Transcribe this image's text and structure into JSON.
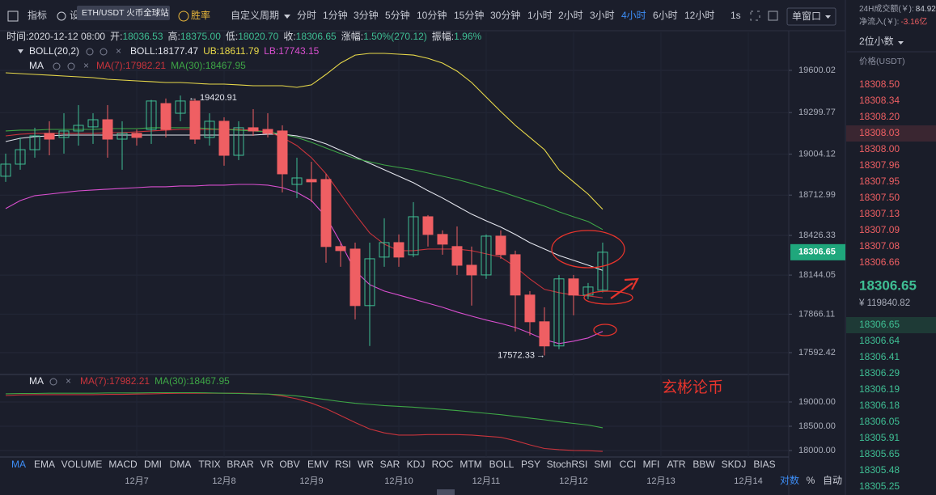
{
  "toolbar": {
    "indicators": "指标",
    "settings": "设置",
    "tooltip": "ETH/USDT 火币全球站",
    "winrate": "胜率",
    "custom_period": "自定义周期",
    "intervals": [
      "分时",
      "1分钟",
      "3分钟",
      "5分钟",
      "10分钟",
      "15分钟",
      "30分钟",
      "1小时",
      "2小时",
      "3小时",
      "4小时",
      "6小时",
      "12小时"
    ],
    "active_interval": 10,
    "seconds": "1s",
    "window": "单窗口"
  },
  "market": {
    "turnover_label": "24H成交额(￥):",
    "turnover": "84.92",
    "netflow_label": "净流入(￥):",
    "netflow": "-3.16亿",
    "decimals": "2位小数",
    "price_header": "价格(USDT)"
  },
  "info": [
    {
      "label": "时间:",
      "value": "2020-12-12 08:00"
    },
    {
      "label": "开:",
      "value": "18036.53"
    },
    {
      "label": "高:",
      "value": "18375.00"
    },
    {
      "label": "低:",
      "value": "18020.70"
    },
    {
      "label": "收:",
      "value": "18306.65"
    },
    {
      "label": "涨幅:",
      "value": "1.50%(270.12)"
    },
    {
      "label": "振幅:",
      "value": "1.96%"
    }
  ],
  "chart_data": {
    "type": "candlestick",
    "boll_title": "BOLL(20,2)",
    "ma_title": "MA",
    "up_color": "#3fbf94",
    "down_color": "#ef5f63",
    "xlim": [
      -0.39,
      53.78
    ],
    "xticks": [
      {
        "value": 9,
        "label": "12月7"
      },
      {
        "value": 15,
        "label": "12月8"
      },
      {
        "value": 21,
        "label": "12月9"
      },
      {
        "value": 27,
        "label": "12月10"
      },
      {
        "value": 33,
        "label": "12月11"
      },
      {
        "value": 39,
        "label": "12月12"
      },
      {
        "value": 45,
        "label": "12月13"
      },
      {
        "value": 51,
        "label": "12月14"
      }
    ],
    "ylim": [
      17442.8,
      19870.4
    ],
    "yticks": [
      19600.02,
      19299.77,
      19004.12,
      18712.99,
      18426.33,
      18144.05,
      17866.11,
      17592.42
    ],
    "lower_ylim": [
      17866.7,
      19566.7
    ],
    "lower_yticks": [
      {
        "value": 19000,
        "label": "19000.00"
      },
      {
        "value": 18500,
        "label": "18500.00"
      },
      {
        "value": 18000,
        "label": "18000.00"
      }
    ],
    "last_price": 18306.65,
    "annotations": {
      "high": "19420.91",
      "high_index": 12,
      "low": "17572.33",
      "low_index": 37
    },
    "open": [
      18847,
      18933,
      19036,
      19152,
      19123,
      19169,
      19198,
      19249,
      19111,
      19152,
      19180,
      19364,
      19295,
      19382,
      19123,
      19238,
      18996,
      19192,
      19180,
      19169,
      18789,
      18824,
      18824,
      18347,
      18329,
      17927,
      18272,
      18375,
      18289,
      18559,
      18433,
      18347,
      18214,
      18145,
      18421,
      18289,
      18002,
      17812,
      17640,
      18117,
      18002,
      18036.53
    ],
    "high": [
      19008,
      19123,
      19192,
      19238,
      19295,
      19353,
      19295,
      19353,
      19238,
      19180,
      19390,
      19400,
      19420.91,
      19400,
      19295,
      19266,
      19238,
      19324,
      19295,
      19209,
      18979,
      18950,
      18864,
      18375,
      18375,
      18375,
      18548,
      18433,
      18663,
      18571,
      18462,
      18490,
      18347,
      18433,
      18462,
      18318,
      18030,
      17915,
      18145,
      18145,
      18088,
      18375
    ],
    "low": [
      18807,
      18893,
      18979,
      18996,
      19008,
      19065,
      19077,
      18979,
      18893,
      19065,
      19077,
      19123,
      19238,
      19077,
      19065,
      18922,
      18962,
      19134,
      19123,
      18732,
      18692,
      18663,
      18232,
      18203,
      17829,
      17640,
      18203,
      18203,
      18272,
      18347,
      18289,
      18145,
      17927,
      18117,
      18260,
      17743,
      17714,
      17572.33,
      17617,
      17858,
      17973,
      18020.7
    ],
    "close": [
      18933,
      19036,
      19134,
      19111,
      19169,
      19209,
      19249,
      19111,
      19152,
      19123,
      19382,
      19180,
      19382,
      19111,
      19238,
      18996,
      19192,
      19169,
      19152,
      18864,
      18835,
      18807,
      18347,
      18318,
      17927,
      18260,
      18375,
      18272,
      18559,
      18433,
      18364,
      18214,
      18145,
      18421,
      18289,
      18002,
      17812,
      17640,
      18117,
      18002,
      18059,
      18306.65
    ],
    "series": [
      {
        "legend": "BOLL:18177.47",
        "color": "#e4e6ee",
        "values": [
          19094,
          19117,
          19129,
          19134,
          19140,
          19140,
          19140,
          19140,
          19140,
          19140,
          19140,
          19140,
          19140,
          19140,
          19140,
          19140,
          19140,
          19140,
          19146,
          19146,
          19134,
          19111,
          19077,
          19031,
          18985,
          18939,
          18893,
          18847,
          18801,
          18744,
          18692,
          18634,
          18577,
          18530,
          18485,
          18433,
          18375,
          18329,
          18283,
          18249,
          18214,
          18177.47
        ]
      },
      {
        "legend": "UB:18611.79",
        "color": "#e8d94a",
        "values": [
          19583,
          19577,
          19571,
          19566,
          19560,
          19554,
          19548,
          19537,
          19531,
          19525,
          19520,
          19514,
          19514,
          19508,
          19502,
          19502,
          19497,
          19491,
          19491,
          19491,
          19479,
          19497,
          19571,
          19652,
          19709,
          19721,
          19721,
          19715,
          19709,
          19686,
          19652,
          19594,
          19514,
          19410,
          19307,
          19209,
          19123,
          19036,
          18893,
          18807,
          18720,
          18611.79
        ]
      },
      {
        "legend": "LB:17743.15",
        "color": "#d94fcf",
        "values": [
          18617,
          18674,
          18709,
          18720,
          18732,
          18743,
          18749,
          18755,
          18761,
          18766,
          18772,
          18772,
          18778,
          18778,
          18784,
          18784,
          18789,
          18789,
          18784,
          18766,
          18732,
          18674,
          18559,
          18375,
          18174,
          18076,
          18030,
          18002,
          17973,
          17944,
          17915,
          17881,
          17852,
          17824,
          17800,
          17772,
          17731,
          17685,
          17657,
          17674,
          17697,
          17743.15
        ]
      },
      {
        "legend": "MA(7):17982.21",
        "color": "#c9343c",
        "values": [
          19134,
          19146,
          19152,
          19152,
          19152,
          19152,
          19152,
          19157,
          19157,
          19163,
          19169,
          19175,
          19180,
          19180,
          19180,
          19180,
          19180,
          19175,
          19163,
          19123,
          19065,
          18979,
          18864,
          18720,
          18577,
          18444,
          18364,
          18318,
          18318,
          18329,
          18329,
          18329,
          18318,
          18295,
          18272,
          18203,
          18117,
          18042,
          18019,
          18002,
          17996,
          17982.21
        ]
      },
      {
        "legend": "MA(30):18467.95",
        "color": "#3ea646",
        "values": [
          19169,
          19175,
          19175,
          19180,
          19180,
          19180,
          19180,
          19186,
          19186,
          19186,
          19192,
          19192,
          19192,
          19192,
          19186,
          19180,
          19175,
          19169,
          19163,
          19146,
          19123,
          19088,
          19048,
          19008,
          18973,
          18950,
          18927,
          18910,
          18893,
          18870,
          18847,
          18824,
          18795,
          18766,
          18738,
          18703,
          18669,
          18634,
          18594,
          18559,
          18525,
          18467.95
        ]
      }
    ]
  },
  "watermark": "玄彬论币",
  "order_book": {
    "asks": [
      "18308.50",
      "18308.34",
      "18308.20",
      "18308.03",
      "18308.00",
      "18307.96",
      "18307.95",
      "18307.50",
      "18307.13",
      "18307.09",
      "18307.08",
      "18306.66"
    ],
    "last": "18306.65",
    "last_cny": "¥ 119840.82",
    "bids": [
      "18306.65",
      "18306.64",
      "18306.41",
      "18306.29",
      "18306.19",
      "18306.18",
      "18306.05",
      "18305.91",
      "18305.65",
      "18305.48",
      "18305.25"
    ]
  },
  "indicator_tabs": [
    "MA",
    "EMA",
    "VOLUME",
    "MACD",
    "DMI",
    "DMA",
    "TRIX",
    "BRAR",
    "VR",
    "OBV",
    "EMV",
    "RSI",
    "WR",
    "SAR",
    "KDJ",
    "ROC",
    "MTM",
    "BOLL",
    "PSY",
    "StochRSI",
    "SMI",
    "CCI",
    "MFI",
    "ATR",
    "BBW",
    "SKDJ",
    "BIAS"
  ],
  "active_tab": 0,
  "axis_modes": [
    "对数",
    "%",
    "自动"
  ]
}
